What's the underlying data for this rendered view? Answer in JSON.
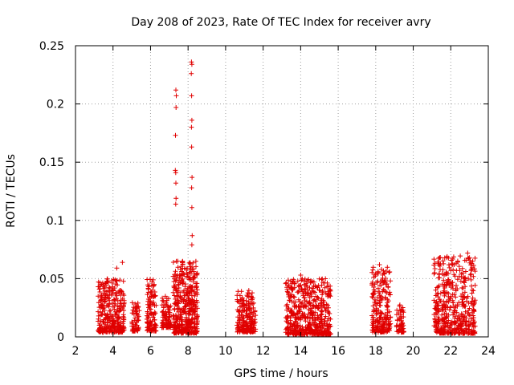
{
  "chart_data": {
    "type": "scatter",
    "title": "Day 208 of 2023, Rate Of TEC Index for receiver avry",
    "xlabel": "GPS time / hours",
    "ylabel": "ROTI / TECUs",
    "xlim": [
      2,
      24
    ],
    "ylim": [
      0,
      0.25
    ],
    "x_ticks": [
      "2",
      "4",
      "6",
      "8",
      "10",
      "12",
      "14",
      "16",
      "18",
      "20",
      "22",
      "24"
    ],
    "y_ticks": [
      "0",
      "0.05",
      "0.1",
      "0.15",
      "0.2",
      "0.25"
    ],
    "grid": true,
    "marker": "+",
    "color": "#e00000",
    "clusters": [
      {
        "x": [
          3.2,
          4.6
        ],
        "y": [
          0.004,
          0.05
        ],
        "n": 320
      },
      {
        "x": [
          5.0,
          5.4
        ],
        "y": [
          0.005,
          0.03
        ],
        "n": 60
      },
      {
        "x": [
          5.8,
          6.3
        ],
        "y": [
          0.005,
          0.05
        ],
        "n": 120
      },
      {
        "x": [
          6.6,
          7.1
        ],
        "y": [
          0.008,
          0.035
        ],
        "n": 90
      },
      {
        "x": [
          7.2,
          8.5
        ],
        "y": [
          0.003,
          0.065
        ],
        "n": 420
      },
      {
        "x": [
          10.6,
          11.6
        ],
        "y": [
          0.004,
          0.04
        ],
        "n": 200
      },
      {
        "x": [
          13.2,
          15.6
        ],
        "y": [
          0.002,
          0.05
        ],
        "n": 520
      },
      {
        "x": [
          17.8,
          18.8
        ],
        "y": [
          0.004,
          0.06
        ],
        "n": 220
      },
      {
        "x": [
          19.1,
          19.5
        ],
        "y": [
          0.004,
          0.028
        ],
        "n": 60
      },
      {
        "x": [
          21.1,
          23.3
        ],
        "y": [
          0.003,
          0.07
        ],
        "n": 460
      }
    ],
    "points": [
      {
        "x": 7.35,
        "y": 0.212
      },
      {
        "x": 7.37,
        "y": 0.207
      },
      {
        "x": 7.36,
        "y": 0.197
      },
      {
        "x": 7.33,
        "y": 0.173
      },
      {
        "x": 7.32,
        "y": 0.143
      },
      {
        "x": 7.34,
        "y": 0.141
      },
      {
        "x": 7.35,
        "y": 0.132
      },
      {
        "x": 7.36,
        "y": 0.119
      },
      {
        "x": 7.34,
        "y": 0.114
      },
      {
        "x": 8.18,
        "y": 0.236
      },
      {
        "x": 8.2,
        "y": 0.234
      },
      {
        "x": 8.17,
        "y": 0.226
      },
      {
        "x": 8.19,
        "y": 0.207
      },
      {
        "x": 8.2,
        "y": 0.186
      },
      {
        "x": 8.18,
        "y": 0.18
      },
      {
        "x": 8.19,
        "y": 0.163
      },
      {
        "x": 8.21,
        "y": 0.137
      },
      {
        "x": 8.19,
        "y": 0.128
      },
      {
        "x": 8.2,
        "y": 0.111
      },
      {
        "x": 8.22,
        "y": 0.087
      },
      {
        "x": 8.2,
        "y": 0.079
      },
      {
        "x": 8.21,
        "y": 0.06
      },
      {
        "x": 4.5,
        "y": 0.064
      },
      {
        "x": 4.2,
        "y": 0.059
      },
      {
        "x": 7.45,
        "y": 0.065
      },
      {
        "x": 7.6,
        "y": 0.058
      },
      {
        "x": 18.2,
        "y": 0.062
      },
      {
        "x": 22.9,
        "y": 0.072
      },
      {
        "x": 23.0,
        "y": 0.068
      },
      {
        "x": 14.0,
        "y": 0.053
      },
      {
        "x": 22.0,
        "y": 0.057
      }
    ]
  }
}
